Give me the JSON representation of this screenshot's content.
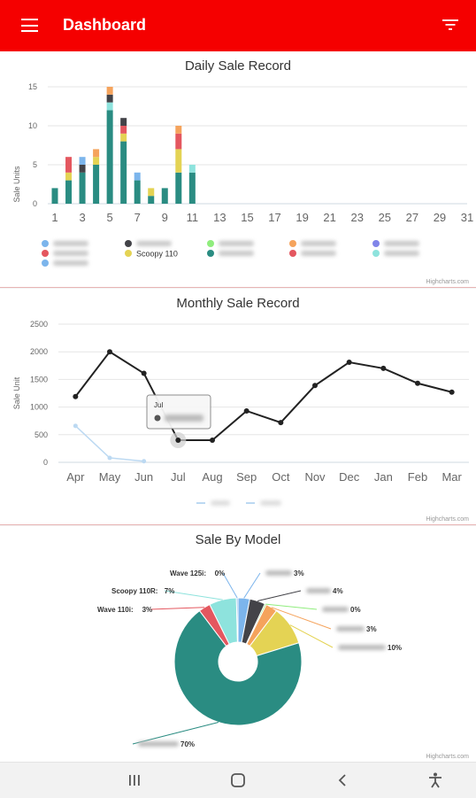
{
  "header": {
    "title": "Dashboard",
    "menu_icon": "hamburger-menu-icon",
    "filter_icon": "filter-icon",
    "bar_color": "#f50000"
  },
  "credit": "Highcharts.com",
  "chart_data": [
    {
      "type": "bar",
      "stacked": true,
      "title": "Daily Sale Record",
      "ylabel": "Sale Units",
      "ylim": [
        0,
        15
      ],
      "yticks": [
        0,
        5,
        10,
        15
      ],
      "x": [
        1,
        2,
        3,
        4,
        5,
        6,
        7,
        8,
        9,
        10,
        11,
        12,
        13,
        14,
        15,
        16,
        17,
        18,
        19,
        20,
        21,
        22,
        23,
        24,
        25,
        26,
        27,
        28,
        29,
        30,
        31
      ],
      "xticks": [
        1,
        3,
        5,
        7,
        9,
        11,
        13,
        15,
        17,
        19,
        21,
        23,
        25,
        27,
        29,
        31
      ],
      "series": [
        {
          "color": "#2a8c82",
          "values": [
            {
              "x": 1,
              "y": 2
            },
            {
              "x": 2,
              "y": 3
            },
            {
              "x": 3,
              "y": 4
            },
            {
              "x": 4,
              "y": 5
            },
            {
              "x": 5,
              "y": 12
            },
            {
              "x": 6,
              "y": 8
            },
            {
              "x": 7,
              "y": 3
            },
            {
              "x": 8,
              "y": 1
            },
            {
              "x": 9,
              "y": 2
            },
            {
              "x": 10,
              "y": 4
            },
            {
              "x": 11,
              "y": 4
            }
          ]
        },
        {
          "color": "#8ee3dd",
          "values": [
            {
              "x": 5,
              "y": 1
            },
            {
              "x": 11,
              "y": 1
            }
          ]
        },
        {
          "color": "#e4d354",
          "values": [
            {
              "x": 2,
              "y": 1
            },
            {
              "x": 4,
              "y": 1
            },
            {
              "x": 6,
              "y": 1
            },
            {
              "x": 8,
              "y": 1
            },
            {
              "x": 10,
              "y": 3
            }
          ]
        },
        {
          "color": "#e4575f",
          "values": [
            {
              "x": 2,
              "y": 2
            },
            {
              "x": 6,
              "y": 1
            },
            {
              "x": 10,
              "y": 2
            }
          ]
        },
        {
          "color": "#434348",
          "values": [
            {
              "x": 3,
              "y": 1
            },
            {
              "x": 5,
              "y": 1
            },
            {
              "x": 6,
              "y": 1
            }
          ]
        },
        {
          "color": "#f5a35c",
          "values": [
            {
              "x": 4,
              "y": 1
            },
            {
              "x": 5,
              "y": 1
            },
            {
              "x": 10,
              "y": 1
            }
          ]
        },
        {
          "color": "#7cb5ec",
          "values": [
            {
              "x": 3,
              "y": 1
            },
            {
              "x": 7,
              "y": 1
            }
          ]
        }
      ],
      "legend": {
        "placement": "bottom",
        "colors": [
          "#7cb5ec",
          "#434348",
          "#90ed7d",
          "#f5a35c",
          "#8085e9",
          "#e4575f",
          "#e4d354",
          "#2a8c82",
          "#e4575f",
          "#8ee3dd",
          "#7cb5ec"
        ],
        "labels": [
          "",
          "",
          "",
          "",
          "",
          "",
          "Scoopy 110",
          "",
          "",
          "",
          ""
        ]
      }
    },
    {
      "type": "line",
      "title": "Monthly Sale Record",
      "ylabel": "Sale Unit",
      "ylim": [
        0,
        2500
      ],
      "yticks": [
        0,
        500,
        1000,
        1500,
        2000,
        2500
      ],
      "categories": [
        "Apr",
        "May",
        "Jun",
        "Jul",
        "Aug",
        "Sep",
        "Oct",
        "Nov",
        "Dec",
        "Jan",
        "Feb",
        "Mar"
      ],
      "series": [
        {
          "color": "#222222",
          "values": [
            1190,
            2000,
            1610,
            400,
            400,
            930,
            720,
            1390,
            1810,
            1700,
            1430,
            1270
          ]
        },
        {
          "color": "#bcd9f2",
          "values": [
            660,
            80,
            20,
            null,
            null,
            null,
            null,
            null,
            null,
            null,
            null,
            null
          ]
        }
      ],
      "tooltip": {
        "month": "Jul"
      },
      "legend": {
        "placement": "bottom"
      }
    },
    {
      "type": "pie",
      "title": "Sale By Model",
      "donut": true,
      "slices": [
        {
          "label": "",
          "value": 3,
          "color": "#7cb5ec",
          "percent": "3%"
        },
        {
          "label": "",
          "value": 4,
          "color": "#434348",
          "percent": "4%"
        },
        {
          "label": "",
          "value": 0.4,
          "color": "#90ed7d",
          "percent": "0%"
        },
        {
          "label": "",
          "value": 3,
          "color": "#f5a35c",
          "percent": "3%"
        },
        {
          "label": "",
          "value": 10,
          "color": "#e4d354",
          "percent": "10%"
        },
        {
          "label": "",
          "value": 70,
          "color": "#2a8c82",
          "percent": "70%"
        },
        {
          "label": "",
          "value": 3,
          "color": "#e4575f",
          "percent": "3%"
        },
        {
          "label": "",
          "value": 7,
          "color": "#8ee3dd",
          "percent": "7%"
        },
        {
          "label": "",
          "value": 0.4,
          "color": "#7cb5ec",
          "percent": "0%"
        }
      ]
    }
  ],
  "pie_labels": {
    "l0": "3%",
    "l1": "4%",
    "l2": "0%",
    "l3": "3%",
    "l4": "10%",
    "l5": "70%",
    "l6": "3%",
    "l7": "7%",
    "l8": "0%"
  },
  "pie_label_prefix": {
    "l7": "Scoopy 110R: ",
    "l8": "Wave 125i: ",
    "l6": "Wave 110i: "
  },
  "navbar": {
    "icons": [
      "recent-apps-icon",
      "home-icon",
      "back-icon",
      "accessibility-icon"
    ]
  }
}
